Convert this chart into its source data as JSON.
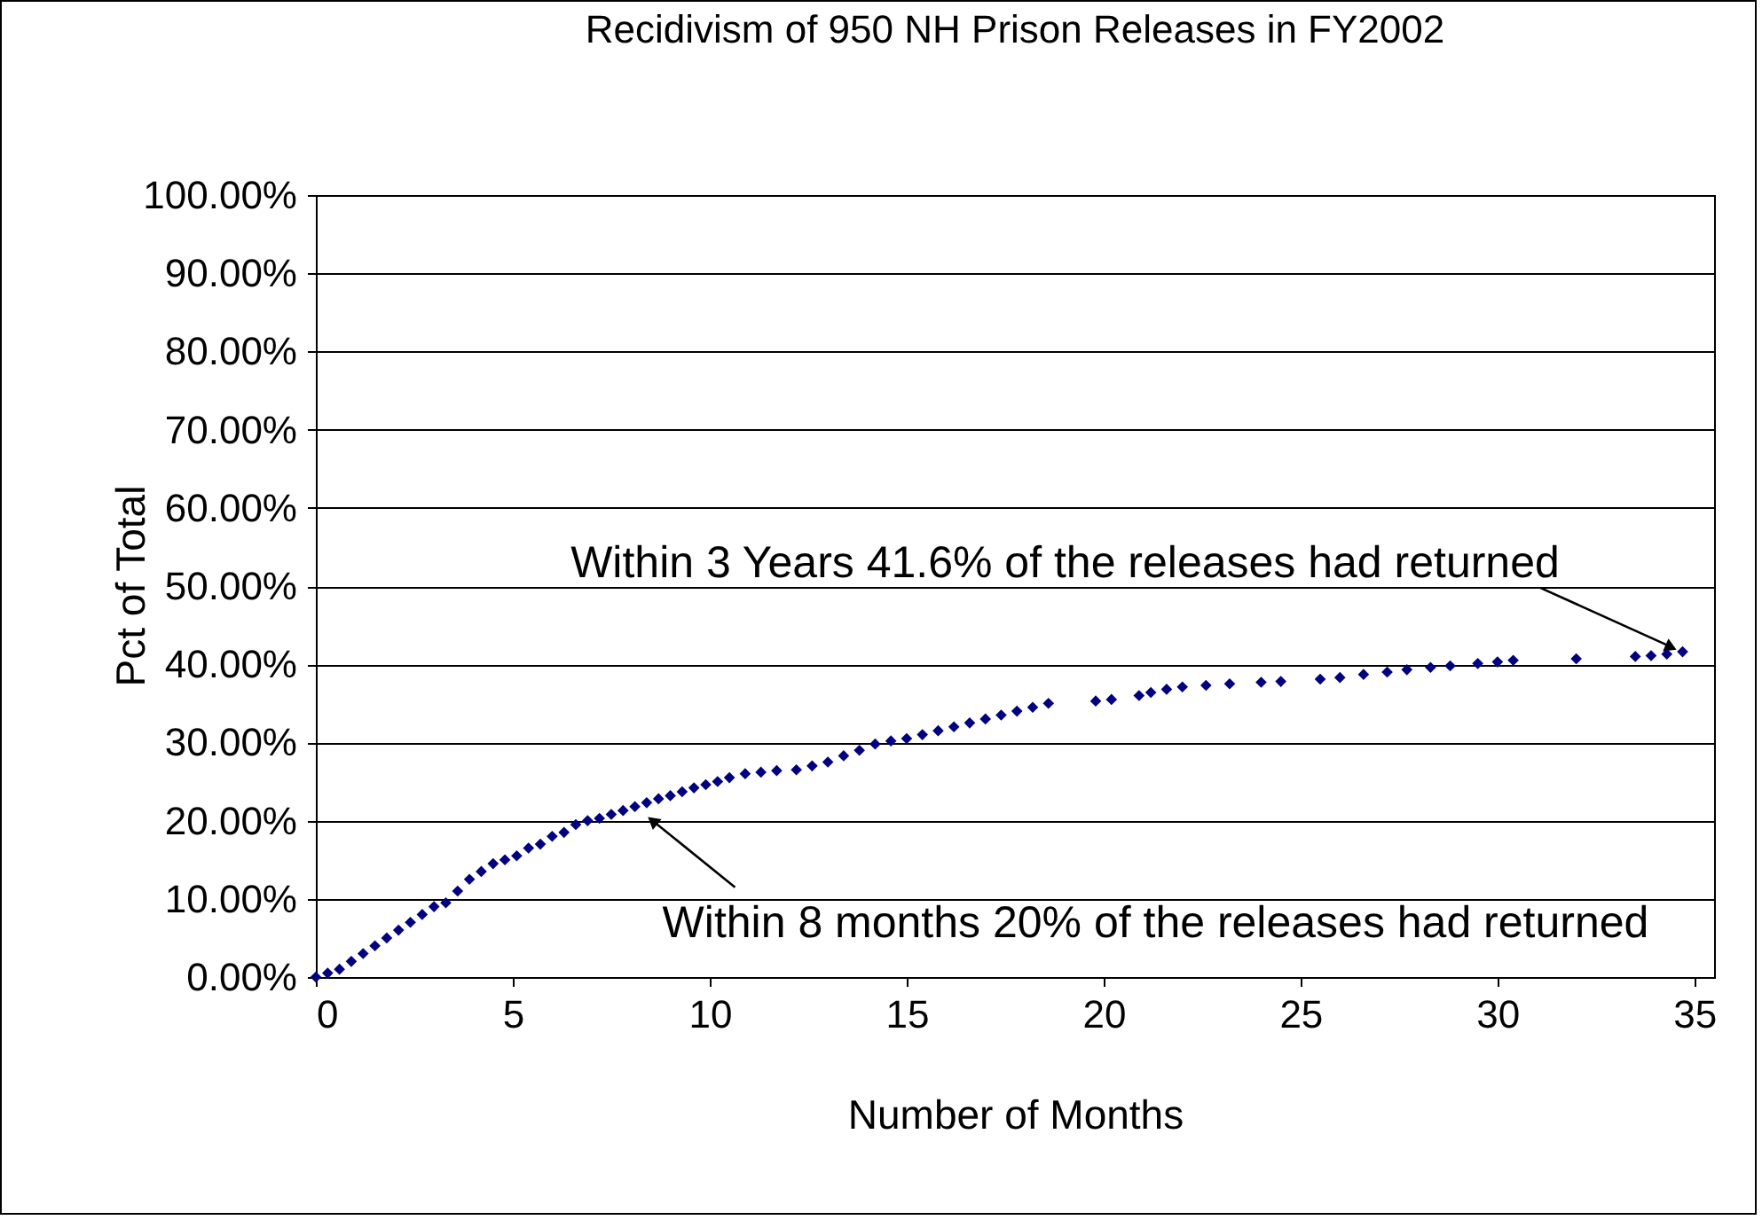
{
  "chart_data": {
    "type": "scatter",
    "title": "Recidivism of 950 NH Prison Releases in FY2002",
    "xlabel": "Number of Months",
    "ylabel": "Pct of Total",
    "x": [
      0,
      0.3,
      0.6,
      0.9,
      1.2,
      1.5,
      1.8,
      2.1,
      2.4,
      2.7,
      3.0,
      3.3,
      3.6,
      3.9,
      4.2,
      4.5,
      4.8,
      5.1,
      5.4,
      5.7,
      6.0,
      6.3,
      6.6,
      6.9,
      7.2,
      7.5,
      7.8,
      8.1,
      8.4,
      8.7,
      9.0,
      9.3,
      9.6,
      9.9,
      10.2,
      10.5,
      10.9,
      11.3,
      11.7,
      12.2,
      12.6,
      13.0,
      13.4,
      13.8,
      14.2,
      14.6,
      15.0,
      15.4,
      15.8,
      16.2,
      16.6,
      17.0,
      17.4,
      17.8,
      18.2,
      18.6,
      19.8,
      20.2,
      20.9,
      21.2,
      21.6,
      22.0,
      22.6,
      23.2,
      24.0,
      24.5,
      25.5,
      26.0,
      26.6,
      27.2,
      27.7,
      28.3,
      28.8,
      29.5,
      30.0,
      30.4,
      32.0,
      33.5,
      33.9,
      34.3,
      34.7
    ],
    "series": [
      {
        "color": "#000080",
        "values": [
          0,
          0.5,
          1,
          2,
          3,
          4,
          5,
          6,
          7,
          8,
          9,
          9.5,
          11,
          12.5,
          13.5,
          14.5,
          15,
          15.5,
          16.5,
          17,
          18,
          18.5,
          19.5,
          20,
          20.3,
          20.8,
          21.3,
          21.8,
          22.3,
          22.8,
          23.2,
          23.7,
          24.2,
          24.6,
          25,
          25.5,
          26,
          26.2,
          26.4,
          26.5,
          27,
          27.5,
          28.3,
          29,
          29.8,
          30.2,
          30.5,
          31,
          31.5,
          32,
          32.5,
          33,
          33.5,
          34,
          34.5,
          35,
          35.3,
          35.5,
          36,
          36.4,
          36.8,
          37.1,
          37.3,
          37.5,
          37.7,
          37.8,
          38.1,
          38.3,
          38.7,
          39,
          39.3,
          39.6,
          39.8,
          40.1,
          40.3,
          40.5,
          40.7,
          41,
          41.1,
          41.3,
          41.6
        ]
      }
    ],
    "marker": "diamond",
    "grid": "y",
    "xlim": [
      0,
      35.5
    ],
    "xticks": [
      0,
      5,
      10,
      15,
      20,
      25,
      30,
      35
    ],
    "ylim": [
      0,
      100
    ],
    "yticks": [
      {
        "value": 0,
        "label": "0.00%"
      },
      {
        "value": 10,
        "label": "10.00%"
      },
      {
        "value": 20,
        "label": "20.00%"
      },
      {
        "value": 30,
        "label": "30.00%"
      },
      {
        "value": 40,
        "label": "40.00%"
      },
      {
        "value": 50,
        "label": "50.00%"
      },
      {
        "value": 60,
        "label": "60.00%"
      },
      {
        "value": 70,
        "label": "70.00%"
      },
      {
        "value": 80,
        "label": "80.00%"
      },
      {
        "value": 90,
        "label": "90.00%"
      },
      {
        "value": 100,
        "label": "100.00%"
      }
    ],
    "annotations": [
      {
        "text": "Within 3 Years 41.6% of the releases had returned",
        "x": 34.7,
        "y": 41.6
      },
      {
        "text": "Within 8 months 20% of the releases had returned",
        "x": 8.3,
        "y": 21
      }
    ]
  }
}
